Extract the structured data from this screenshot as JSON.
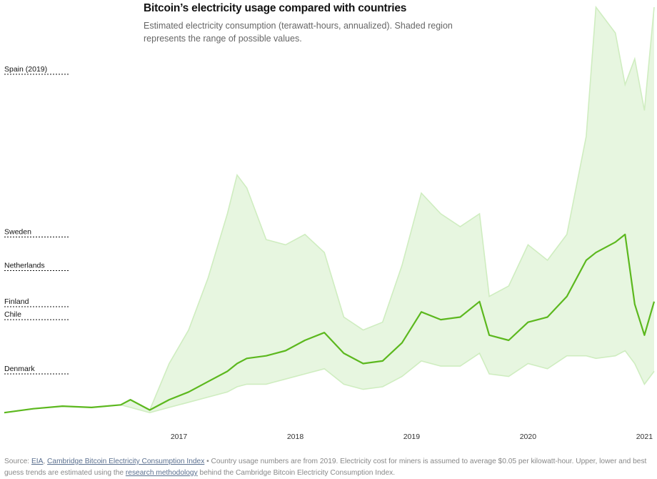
{
  "chart_data": {
    "type": "area",
    "title": "Bitcoin’s electricity usage compared with countries",
    "subtitle": "Estimated electricity consumption (terawatt-hours, annualized). Shaded region represents the range of possible values.",
    "xlabel": "",
    "ylabel": "",
    "xlim": [
      "2016-01",
      "2021-08"
    ],
    "ylim": [
      0,
      160
    ],
    "grid": false,
    "x_ticks": [
      "2017",
      "2018",
      "2019",
      "2020",
      "2021"
    ],
    "x": [
      "2016-01",
      "2016-04",
      "2016-07",
      "2016-10",
      "2017-01",
      "2017-02",
      "2017-04",
      "2017-06",
      "2017-08",
      "2017-10",
      "2017-12",
      "2018-01",
      "2018-02",
      "2018-04",
      "2018-06",
      "2018-08",
      "2018-10",
      "2018-12",
      "2019-02",
      "2019-04",
      "2019-06",
      "2019-08",
      "2019-10",
      "2019-12",
      "2020-02",
      "2020-03",
      "2020-05",
      "2020-07",
      "2020-09",
      "2020-11",
      "2021-01",
      "2021-02",
      "2021-04",
      "2021-05",
      "2021-06",
      "2021-07",
      "2021-08"
    ],
    "series": [
      {
        "values": [
          3,
          4.5,
          5.5,
          5,
          6,
          8,
          4,
          8,
          11,
          15,
          19,
          22,
          24,
          25,
          27,
          31,
          34,
          26,
          22,
          23,
          30,
          42,
          39,
          40,
          46,
          33,
          31,
          38,
          40,
          48,
          62,
          65,
          69,
          72,
          45,
          33,
          46
        ]
      },
      {
        "values": [
          3,
          4.5,
          5.5,
          5,
          6,
          8,
          4,
          22,
          35,
          55,
          80,
          95,
          90,
          70,
          68,
          72,
          65,
          40,
          35,
          38,
          60,
          88,
          80,
          75,
          80,
          48,
          52,
          68,
          62,
          72,
          110,
          160,
          150,
          130,
          140,
          120,
          160
        ]
      },
      {
        "values": [
          3,
          4.5,
          5.5,
          5,
          6,
          5,
          3,
          5,
          7,
          9,
          11,
          13,
          14,
          14,
          16,
          18,
          20,
          14,
          12,
          13,
          17,
          23,
          21,
          21,
          26,
          18,
          17,
          22,
          20,
          25,
          25,
          24,
          25,
          27,
          22,
          14,
          19
        ]
      }
    ],
    "country_references": [
      {
        "label": "Spain (2019)",
        "value": 134
      },
      {
        "label": "Sweden",
        "value": 71
      },
      {
        "label": "Netherlands",
        "value": 58
      },
      {
        "label": "Finland",
        "value": 44
      },
      {
        "label": "Chile",
        "value": 39
      },
      {
        "label": "Denmark",
        "value": 18
      }
    ],
    "colors": {
      "best_guess": "#5cb81e",
      "range_fill": "#e7f6e0",
      "range_edge": "#cfedc0"
    }
  },
  "footer": {
    "source_prefix": "Source: ",
    "source_eia": "EIA",
    "separator": ", ",
    "source_cambridge": "Cambridge Bitcoin Electricity Consumption Index",
    "bullet": " • ",
    "note_part1": "Country usage numbers are from 2019. Electricity cost for miners is assumed to average $0.05 per kilowatt-hour. Upper, lower and best guess trends are estimated using the ",
    "methodology_link": "research methodology",
    "note_part2": " behind the Cambridge Bitcoin Electricity Consumption Index."
  }
}
